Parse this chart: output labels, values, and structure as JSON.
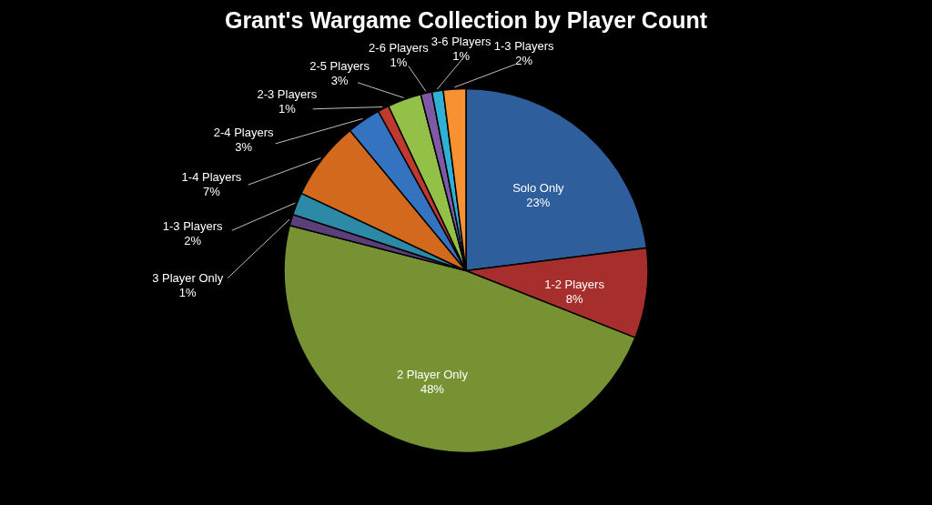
{
  "chart_data": {
    "type": "pie",
    "title": "Grant's Wargame Collection by Player Count",
    "categories": [
      "Solo Only",
      "1-2 Players",
      "2 Player Only",
      "3 Player Only",
      "1-3 Players",
      "1-4 Players",
      "2-4 Players",
      "2-3 Players",
      "2-5 Players",
      "2-6 Players",
      "3-6 Players",
      "1-3 Players"
    ],
    "values": [
      23,
      8,
      48,
      1,
      2,
      7,
      3,
      1,
      3,
      1,
      1,
      2
    ],
    "value_labels": [
      "23%",
      "8%",
      "48%",
      "1%",
      "2%",
      "7%",
      "3%",
      "1%",
      "3%",
      "1%",
      "1%",
      "2%"
    ],
    "colors": [
      "#2e5e9c",
      "#a62e2c",
      "#779232",
      "#5a3f7a",
      "#2c8aa6",
      "#d2691c",
      "#3373c0",
      "#c0392f",
      "#93c047",
      "#7e5aa6",
      "#2fb1d4",
      "#f79131"
    ]
  }
}
